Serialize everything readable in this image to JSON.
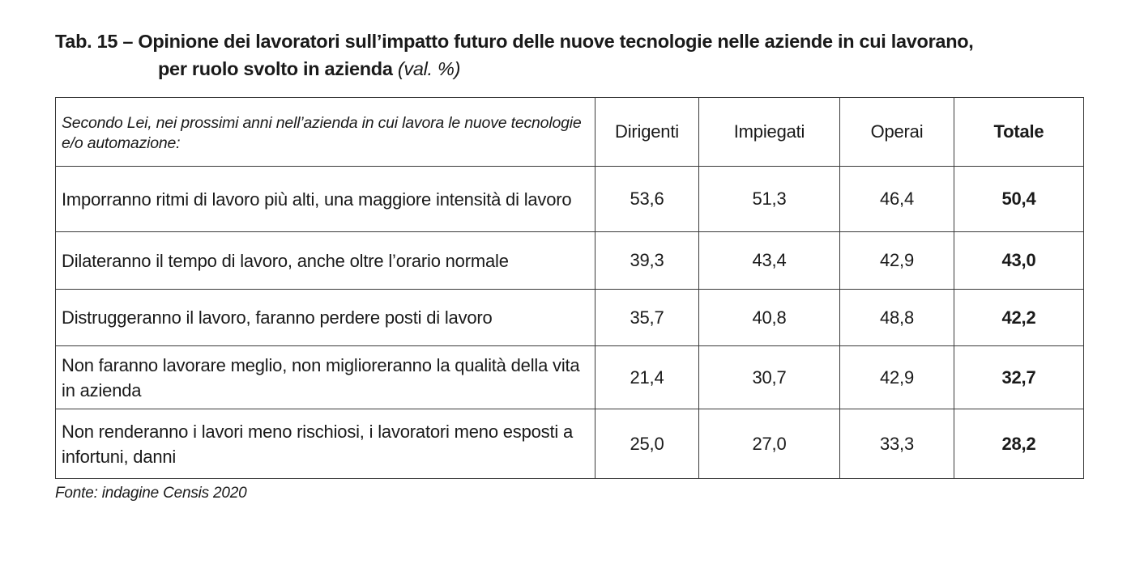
{
  "title": {
    "line1": "Tab. 15 – Opinione dei lavoratori sull’impatto futuro delle nuove tecnologie nelle aziende in cui lavorano,",
    "line2": "per ruolo svolto in azienda",
    "unit": "(val. %)"
  },
  "table": {
    "question": "Secondo Lei, nei prossimi anni nell’azienda in cui lavora le nuove tecnologie e/o automazione:",
    "columns": [
      "Dirigenti",
      "Impiegati",
      "Operai",
      "Totale"
    ],
    "rows": [
      {
        "label": "Imporranno ritmi di lavoro più alti, una maggiore intensità di lavoro",
        "values": [
          "53,6",
          "51,3",
          "46,4",
          "50,4"
        ]
      },
      {
        "label": "Dilateranno il tempo di lavoro, anche oltre l’orario normale",
        "values": [
          "39,3",
          "43,4",
          "42,9",
          "43,0"
        ]
      },
      {
        "label": "Distruggeranno il lavoro, faranno perdere posti di lavoro",
        "values": [
          "35,7",
          "40,8",
          "48,8",
          "42,2"
        ]
      },
      {
        "label": "Non faranno lavorare meglio, non miglioreranno la qualità della vita in azienda",
        "values": [
          "21,4",
          "30,7",
          "42,9",
          "32,7"
        ]
      },
      {
        "label": "Non renderanno i lavori meno rischiosi, i lavoratori meno esposti a infortuni, danni",
        "values": [
          "25,0",
          "27,0",
          "33,3",
          "28,2"
        ]
      }
    ]
  },
  "source": "Fonte: indagine Censis 2020"
}
